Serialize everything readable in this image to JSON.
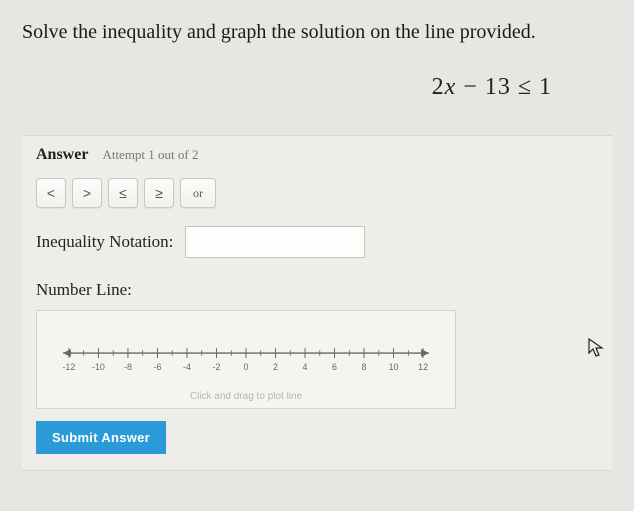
{
  "prompt": "Solve the inequality and graph the solution on the line provided.",
  "equation": {
    "lhs_var": "x",
    "lhs_coeff": "2",
    "lhs_minus": "13",
    "op": "≤",
    "rhs": "1"
  },
  "answer": {
    "label": "Answer",
    "attempt": "Attempt 1 out of 2"
  },
  "ops": {
    "lt": "<",
    "gt": ">",
    "le": "≤",
    "ge": "≥",
    "or": "or"
  },
  "notation": {
    "label": "Inequality Notation:",
    "value": ""
  },
  "numberline": {
    "label": "Number Line:",
    "ticks": [
      -12,
      -10,
      -8,
      -6,
      -4,
      -2,
      0,
      2,
      4,
      6,
      8,
      10,
      12
    ],
    "axis_color": "#6a6762",
    "tick_color": "#6a6762",
    "label_color": "#6a6762",
    "label_fontsize": 9,
    "hint": "Click and drag to plot line"
  },
  "submit": "Submit Answer",
  "colors": {
    "page_bg": "#e8e6e2",
    "panel_bg": "#efede9",
    "btn_border": "#c9c6c1",
    "submit_bg": "#2a9bd6"
  }
}
